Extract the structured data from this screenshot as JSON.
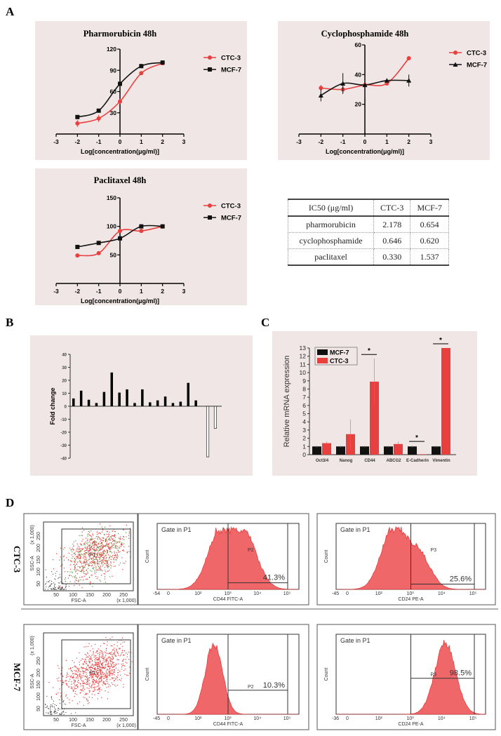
{
  "panel_labels": {
    "a": "A",
    "b": "B",
    "c": "C",
    "d": "D"
  },
  "colors": {
    "ctc3": "#e8403f",
    "mcf7": "#111111",
    "panel_bg": "#efe6e5",
    "histogram_fill": "#f0676a"
  },
  "chart_data": [
    {
      "id": "pharmorubicin",
      "type": "line",
      "title": "Pharmorubicin 48h",
      "xlabel": "Log[concentration(μg/ml)]",
      "xlim": [
        -3,
        3
      ],
      "xticks": [
        "-3",
        "-2",
        "-1",
        "0",
        "1",
        "2",
        "3"
      ],
      "ylim": [
        0,
        120
      ],
      "yticks": [
        "30",
        "60",
        "90",
        "120"
      ],
      "legend": "right",
      "series": [
        {
          "name": "CTC-3",
          "marker": "circle",
          "color": "#e8403f",
          "x": [
            -2,
            -1,
            0,
            1,
            2
          ],
          "y": [
            15,
            22,
            46,
            86,
            100
          ],
          "err": [
            5,
            5,
            4,
            2,
            1
          ]
        },
        {
          "name": "MCF-7",
          "marker": "square",
          "color": "#111111",
          "x": [
            -2,
            -1,
            0,
            1,
            2
          ],
          "y": [
            24,
            33,
            71,
            96,
            101
          ],
          "err": [
            1,
            2,
            2,
            1,
            1
          ]
        }
      ]
    },
    {
      "id": "cyclophosphamide",
      "type": "line",
      "title": "Cyclophosphamide 48h",
      "xlabel": "Log[concentration(μg/ml)]",
      "xlim": [
        -3,
        3
      ],
      "xticks": [
        "-3",
        "-2",
        "-1",
        "0",
        "1",
        "2",
        "3"
      ],
      "ylim": [
        0,
        60
      ],
      "yticks": [
        "20",
        "40",
        "60"
      ],
      "legend": "right",
      "series": [
        {
          "name": "CTC-3",
          "marker": "circle",
          "color": "#e8403f",
          "x": [
            -2,
            -1,
            0,
            1,
            2
          ],
          "y": [
            31,
            30,
            33,
            34,
            51
          ],
          "err": [
            2,
            2,
            2,
            1,
            1
          ]
        },
        {
          "name": "MCF-7",
          "marker": "triangle",
          "color": "#111111",
          "x": [
            -2,
            -1,
            0,
            1,
            2
          ],
          "y": [
            26,
            34,
            33,
            36,
            36
          ],
          "err": [
            4,
            7,
            8,
            1,
            4
          ]
        }
      ]
    },
    {
      "id": "paclitaxel",
      "type": "line",
      "title": "Paclitaxel 48h",
      "xlabel": "Log[concentration(μg/ml)]",
      "xlim": [
        -3,
        3
      ],
      "xticks": [
        "-3",
        "-2",
        "-1",
        "0",
        "1",
        "2",
        "3"
      ],
      "ylim": [
        0,
        150
      ],
      "yticks": [
        "50",
        "100",
        "150"
      ],
      "legend": "right",
      "series": [
        {
          "name": "CTC-3",
          "marker": "circle",
          "color": "#e8403f",
          "x": [
            -2,
            -1,
            0,
            1,
            2
          ],
          "y": [
            49,
            53,
            92,
            92,
            100
          ],
          "err": [
            1,
            3,
            1,
            1,
            1
          ]
        },
        {
          "name": "MCF-7",
          "marker": "square",
          "color": "#111111",
          "x": [
            -2,
            -1,
            0,
            1,
            2
          ],
          "y": [
            64,
            71,
            79,
            100,
            100
          ],
          "err": [
            1,
            2,
            1,
            1,
            1
          ]
        }
      ]
    },
    {
      "id": "fold-change",
      "type": "bar",
      "ylabel": "Fold change",
      "ylim": [
        -40,
        40
      ],
      "yticks": [
        "40",
        "30",
        "20",
        "10",
        "0",
        "-10",
        "-20",
        "-30",
        "-40"
      ],
      "values": [
        6,
        12,
        5,
        2.5,
        11,
        26,
        10.5,
        13,
        2.5,
        13,
        3,
        4.5,
        7.5,
        2.5,
        3.5,
        18,
        4.5,
        -39,
        -17
      ]
    },
    {
      "id": "mrna",
      "type": "bar",
      "ylabel": "Relative mRNA expression",
      "ylim": [
        0,
        13
      ],
      "yticks": [
        "0",
        "1",
        "2",
        "3",
        "4",
        "5",
        "6",
        "7",
        "8",
        "9",
        "10",
        "11",
        "12",
        "13"
      ],
      "categories": [
        "Oct3/4",
        "Nanog",
        "CD44",
        "ABCG2",
        "E-Cadherin",
        "Vimentin"
      ],
      "legend": "top-left",
      "series": [
        {
          "name": "MCF-7",
          "color": "#111111",
          "values": [
            1,
            1,
            1,
            1,
            1,
            1
          ],
          "err": [
            0.1,
            0.1,
            0.1,
            0.1,
            0.1,
            0.1
          ]
        },
        {
          "name": "CTC-3",
          "color": "#e8403f",
          "values": [
            1.4,
            2.5,
            8.9,
            1.3,
            0.05,
            13
          ],
          "err": [
            0.2,
            1.8,
            2.8,
            0.3,
            0,
            0
          ]
        }
      ],
      "significance": [
        "",
        "",
        "*",
        "",
        "*",
        "*"
      ]
    }
  ],
  "ic50_table": {
    "headers": [
      "IC50 (μg/ml)",
      "CTC-3",
      "MCF-7"
    ],
    "rows": [
      [
        "pharmorubicin",
        "2.178",
        "0.654"
      ],
      [
        "cyclophosphamide",
        "0.646",
        "0.620"
      ],
      [
        "paclitaxel",
        "0.330",
        "1.537"
      ]
    ]
  },
  "flow": {
    "rows": [
      "CTC-3",
      "MCF-7"
    ],
    "scatter": {
      "ylabel": "SSC-A",
      "xlabel": "FSC-A",
      "unit": "(x 1,000)",
      "gate": "P1",
      "xticks": [
        "50",
        "100",
        "150",
        "200",
        "250"
      ],
      "yticks": [
        "50",
        "100",
        "150",
        "200",
        "250"
      ]
    },
    "gate_title": "Gate in P1",
    "histograms": [
      {
        "row": "CTC-3",
        "marker": "CD44",
        "xlabel": "CD44 FITC-A",
        "gate": "P2",
        "percent": "41.3%",
        "xmin": "-54"
      },
      {
        "row": "CTC-3",
        "marker": "CD24",
        "xlabel": "CD24 PE-A",
        "gate": "P3",
        "percent": "25.6%",
        "xmin": "-45"
      },
      {
        "row": "MCF-7",
        "marker": "CD44",
        "xlabel": "CD44 FITC-A",
        "gate": "P2",
        "percent": "10.3%",
        "xmin": "-45"
      },
      {
        "row": "MCF-7",
        "marker": "CD24",
        "xlabel": "CD24 PE-A",
        "gate": "P3",
        "percent": "98.5%",
        "xmin": "-36"
      }
    ],
    "hist_ylabel": "Count",
    "hist_xticks": [
      "0",
      "10²",
      "10³",
      "10⁴",
      "10⁵"
    ]
  }
}
